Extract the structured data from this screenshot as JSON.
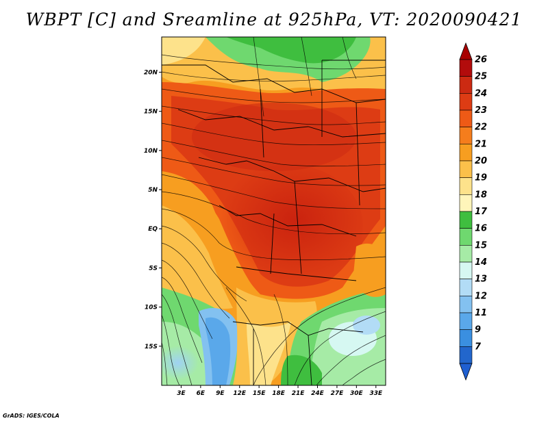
{
  "title": "WBPT [C] and Sreamline at 925hPa, VT: 2020090421",
  "credit": "GrADS: IGES/COLA",
  "map": {
    "lat_labels": [
      "20N",
      "15N",
      "10N",
      "5N",
      "EQ",
      "5S",
      "10S",
      "15S"
    ],
    "lon_labels": [
      "3E",
      "6E",
      "9E",
      "12E",
      "15E",
      "18E",
      "21E",
      "24E",
      "27E",
      "30E",
      "33E"
    ],
    "lat_values": [
      20,
      15,
      10,
      5,
      0,
      -5,
      -10,
      -15
    ],
    "lon_values": [
      3,
      6,
      9,
      12,
      15,
      18,
      21,
      24,
      27,
      30,
      33
    ],
    "lat_range": [
      -20,
      24.5
    ],
    "lon_range": [
      0,
      34.5
    ]
  },
  "colorbar": {
    "labels": [
      "26",
      "25",
      "24",
      "23",
      "22",
      "21",
      "20",
      "19",
      "18",
      "17",
      "16",
      "15",
      "14",
      "13",
      "12",
      "11",
      "9",
      "7"
    ],
    "colors": [
      "#b20c0c",
      "#cc2a12",
      "#dd3c14",
      "#ee5a16",
      "#f57d1c",
      "#f79e20",
      "#fbc04a",
      "#fde28b",
      "#fff5ba",
      "#3fbe3f",
      "#6fd86f",
      "#a6eba6",
      "#d6f8f2",
      "#b2dcf6",
      "#83c1f0",
      "#5aa8ea",
      "#3a8fe0",
      "#2266cc"
    ],
    "top_arrow_color": "#a80000",
    "bottom_arrow_color": "#1f5fd0"
  }
}
